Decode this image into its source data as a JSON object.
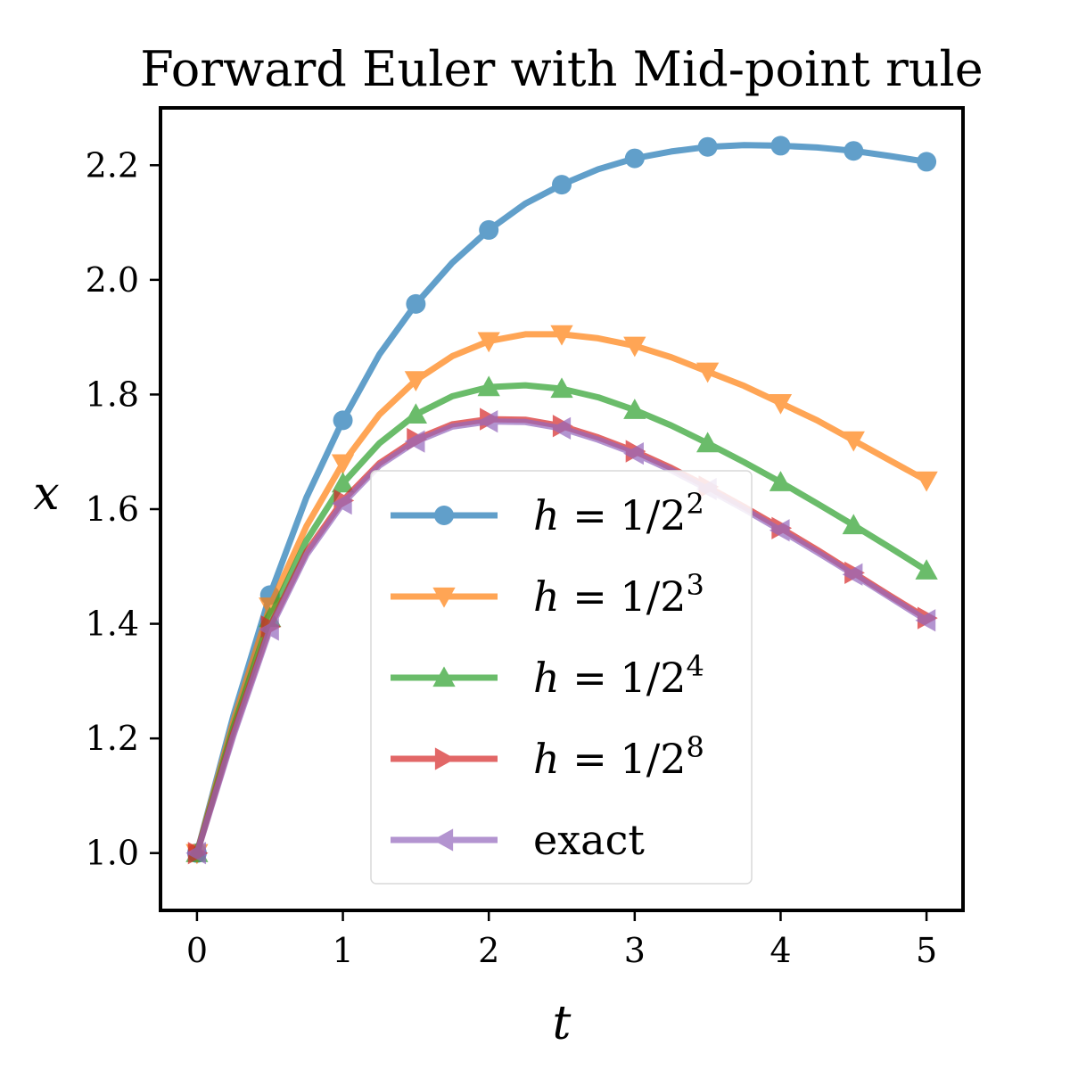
{
  "chart_data": {
    "type": "line",
    "title": "Forward Euler with Mid-point rule",
    "xlabel": "t",
    "ylabel": "x",
    "xlim": [
      -0.25,
      5.25
    ],
    "ylim": [
      0.9,
      2.3
    ],
    "xticks": [
      0,
      1,
      2,
      3,
      4,
      5
    ],
    "xtick_labels": [
      "0",
      "1",
      "2",
      "3",
      "4",
      "5"
    ],
    "yticks": [
      1.0,
      1.2,
      1.4,
      1.6,
      1.8,
      2.0,
      2.2
    ],
    "ytick_labels": [
      "1.0",
      "1.2",
      "1.4",
      "1.6",
      "1.8",
      "2.0",
      "2.2"
    ],
    "grid": false,
    "legend_position": "lower center",
    "series": [
      {
        "name": "h = 1/2^2",
        "legend": {
          "var": "h",
          "rel": " = 1/2",
          "sup": "2"
        },
        "color": "#1f77b4",
        "marker": "circle",
        "x": [
          0,
          0.25,
          0.5,
          0.75,
          1.0,
          1.25,
          1.5,
          1.75,
          2.0,
          2.25,
          2.5,
          2.75,
          3.0,
          3.25,
          3.5,
          3.75,
          4.0,
          4.25,
          4.5,
          4.75,
          5.0
        ],
        "y": [
          1.0,
          1.24,
          1.45,
          1.62,
          1.755,
          1.87,
          1.958,
          2.03,
          2.087,
          2.133,
          2.166,
          2.193,
          2.212,
          2.224,
          2.232,
          2.235,
          2.234,
          2.231,
          2.225,
          2.216,
          2.206
        ],
        "marker_x": [
          0,
          0.5,
          1,
          1.5,
          2,
          2.5,
          3,
          3.5,
          4,
          4.5,
          5
        ],
        "marker_y": [
          1.0,
          1.45,
          1.755,
          1.958,
          2.087,
          2.166,
          2.212,
          2.232,
          2.234,
          2.225,
          2.206
        ]
      },
      {
        "name": "h = 1/2^3",
        "legend": {
          "var": "h",
          "rel": " = 1/2",
          "sup": "3"
        },
        "color": "#ff7f0e",
        "marker": "triangle-down",
        "x": [
          0,
          0.25,
          0.5,
          0.75,
          1.0,
          1.25,
          1.5,
          1.75,
          2.0,
          2.25,
          2.5,
          2.75,
          3.0,
          3.25,
          3.5,
          3.75,
          4.0,
          4.25,
          4.5,
          4.75,
          5.0
        ],
        "y": [
          1.0,
          1.23,
          1.43,
          1.57,
          1.68,
          1.765,
          1.825,
          1.867,
          1.893,
          1.905,
          1.905,
          1.898,
          1.885,
          1.865,
          1.84,
          1.815,
          1.785,
          1.755,
          1.72,
          1.685,
          1.65
        ],
        "marker_x": [
          0,
          0.5,
          1,
          1.5,
          2,
          2.5,
          3,
          3.5,
          4,
          4.5,
          5
        ],
        "marker_y": [
          1.0,
          1.43,
          1.68,
          1.825,
          1.893,
          1.905,
          1.885,
          1.84,
          1.785,
          1.72,
          1.65
        ]
      },
      {
        "name": "h = 1/2^4",
        "legend": {
          "var": "h",
          "rel": " = 1/2",
          "sup": "4"
        },
        "color": "#2ca02c",
        "marker": "triangle-up",
        "x": [
          0,
          0.25,
          0.5,
          0.75,
          1.0,
          1.25,
          1.5,
          1.75,
          2.0,
          2.25,
          2.5,
          2.75,
          3.0,
          3.25,
          3.5,
          3.75,
          4.0,
          4.25,
          4.5,
          4.75,
          5.0
        ],
        "y": [
          1.0,
          1.22,
          1.41,
          1.545,
          1.645,
          1.715,
          1.765,
          1.797,
          1.813,
          1.816,
          1.81,
          1.795,
          1.773,
          1.746,
          1.715,
          1.682,
          1.647,
          1.61,
          1.572,
          1.533,
          1.493
        ],
        "marker_x": [
          0,
          0.5,
          1,
          1.5,
          2,
          2.5,
          3,
          3.5,
          4,
          4.5,
          5
        ],
        "marker_y": [
          1.0,
          1.41,
          1.645,
          1.765,
          1.813,
          1.81,
          1.773,
          1.715,
          1.647,
          1.572,
          1.493
        ]
      },
      {
        "name": "h = 1/2^8",
        "legend": {
          "var": "h",
          "rel": " = 1/2",
          "sup": "8"
        },
        "color": "#d62728",
        "marker": "triangle-right",
        "x": [
          0,
          0.25,
          0.5,
          0.75,
          1.0,
          1.25,
          1.5,
          1.75,
          2.0,
          2.25,
          2.5,
          2.75,
          3.0,
          3.25,
          3.5,
          3.75,
          4.0,
          4.25,
          4.5,
          4.75,
          5.0
        ],
        "y": [
          1.0,
          1.21,
          1.395,
          1.525,
          1.615,
          1.68,
          1.722,
          1.748,
          1.757,
          1.756,
          1.745,
          1.725,
          1.701,
          1.672,
          1.639,
          1.604,
          1.567,
          1.529,
          1.489,
          1.449,
          1.41
        ],
        "marker_x": [
          0,
          0.5,
          1,
          1.5,
          2,
          2.5,
          3,
          3.5,
          4,
          4.5,
          5
        ],
        "marker_y": [
          1.0,
          1.395,
          1.615,
          1.722,
          1.757,
          1.745,
          1.701,
          1.639,
          1.567,
          1.489,
          1.41
        ]
      },
      {
        "name": "exact",
        "legend": {
          "var": "",
          "rel": "exact",
          "sup": ""
        },
        "color": "#9467bd",
        "marker": "triangle-left",
        "x": [
          0,
          0.25,
          0.5,
          0.75,
          1.0,
          1.25,
          1.5,
          1.75,
          2.0,
          2.25,
          2.5,
          2.75,
          3.0,
          3.25,
          3.5,
          3.75,
          4.0,
          4.25,
          4.5,
          4.75,
          5.0
        ],
        "y": [
          1.0,
          1.205,
          1.39,
          1.52,
          1.61,
          1.676,
          1.718,
          1.744,
          1.753,
          1.752,
          1.741,
          1.721,
          1.697,
          1.668,
          1.635,
          1.6,
          1.563,
          1.525,
          1.486,
          1.446,
          1.406
        ],
        "marker_x": [
          0,
          0.5,
          1,
          1.5,
          2,
          2.5,
          3,
          3.5,
          4,
          4.5,
          5
        ],
        "marker_y": [
          1.0,
          1.39,
          1.61,
          1.718,
          1.753,
          1.741,
          1.697,
          1.635,
          1.563,
          1.486,
          1.406
        ]
      }
    ]
  }
}
